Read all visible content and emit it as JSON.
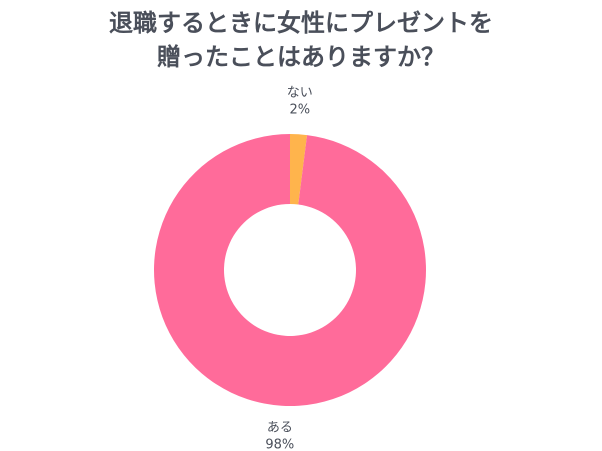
{
  "title_lines": [
    "退職するときに女性にプレゼントを",
    "贈ったことはありますか？"
  ],
  "chart_data": {
    "type": "pie",
    "donut": true,
    "categories": [
      "ない",
      "ある"
    ],
    "values": [
      2,
      98
    ],
    "value_labels": [
      "2%",
      "98%"
    ],
    "colors": [
      "#FFB44C",
      "#FF6B9A"
    ],
    "legend": "none",
    "start": "top",
    "direction": "clockwise"
  }
}
